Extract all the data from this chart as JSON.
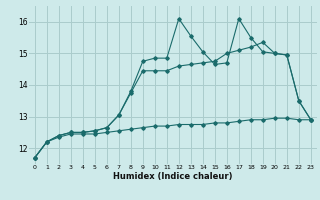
{
  "title": "",
  "xlabel": "Humidex (Indice chaleur)",
  "bg_color": "#ceeaea",
  "grid_color": "#aacccc",
  "line_color": "#1a6b6b",
  "xlim": [
    -0.5,
    23.5
  ],
  "ylim": [
    11.5,
    16.5
  ],
  "yticks": [
    12,
    13,
    14,
    15,
    16
  ],
  "xticks": [
    0,
    1,
    2,
    3,
    4,
    5,
    6,
    7,
    8,
    9,
    10,
    11,
    12,
    13,
    14,
    15,
    16,
    17,
    18,
    19,
    20,
    21,
    22,
    23
  ],
  "line1_x": [
    0,
    1,
    2,
    3,
    4,
    5,
    6,
    7,
    8,
    9,
    10,
    11,
    12,
    13,
    14,
    15,
    16,
    17,
    18,
    19,
    20,
    21,
    22,
    23
  ],
  "line1_y": [
    11.7,
    12.2,
    12.4,
    12.5,
    12.5,
    12.55,
    12.65,
    13.05,
    13.8,
    14.75,
    14.85,
    14.85,
    16.1,
    15.55,
    15.05,
    14.65,
    14.7,
    16.1,
    15.5,
    15.05,
    15.0,
    14.95,
    13.5,
    12.9
  ],
  "line2_x": [
    0,
    1,
    2,
    3,
    4,
    5,
    6,
    7,
    8,
    9,
    10,
    11,
    12,
    13,
    14,
    15,
    16,
    17,
    18,
    19,
    20,
    21,
    22,
    23
  ],
  "line2_y": [
    11.7,
    12.2,
    12.4,
    12.5,
    12.5,
    12.55,
    12.65,
    13.05,
    13.75,
    14.45,
    14.45,
    14.45,
    14.6,
    14.65,
    14.7,
    14.75,
    15.0,
    15.1,
    15.2,
    15.35,
    15.0,
    14.95,
    13.5,
    12.9
  ],
  "line3_x": [
    0,
    1,
    2,
    3,
    4,
    5,
    6,
    7,
    8,
    9,
    10,
    11,
    12,
    13,
    14,
    15,
    16,
    17,
    18,
    19,
    20,
    21,
    22,
    23
  ],
  "line3_y": [
    11.7,
    12.2,
    12.35,
    12.45,
    12.45,
    12.45,
    12.5,
    12.55,
    12.6,
    12.65,
    12.7,
    12.7,
    12.75,
    12.75,
    12.75,
    12.8,
    12.8,
    12.85,
    12.9,
    12.9,
    12.95,
    12.95,
    12.9,
    12.9
  ]
}
